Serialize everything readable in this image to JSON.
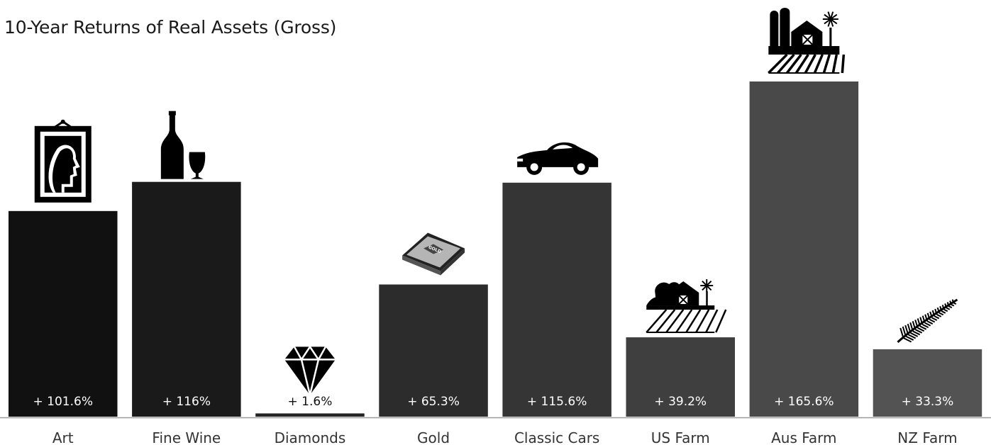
{
  "chart_data": {
    "type": "bar",
    "title": "10-Year Returns of Real Assets (Gross)",
    "xlabel": "",
    "ylabel": "",
    "ylim": [
      0,
      180
    ],
    "grid": false,
    "legend": "none",
    "categories": [
      "Art",
      "Fine Wine",
      "Diamonds",
      "Gold",
      "Classic Cars",
      "US Farm",
      "Aus Farm",
      "NZ Farm"
    ],
    "values": [
      101.6,
      116,
      1.6,
      65.3,
      115.6,
      39.2,
      165.6,
      33.3
    ],
    "data_labels": [
      "+ 101.6%",
      "+ 116%",
      "+ 1.6%",
      "+ 65.3%",
      "+ 115.6%",
      "+ 39.2%",
      "+ 165.6%",
      "+ 33.3%"
    ],
    "bar_colors": [
      "#111111",
      "#1a1a1a",
      "#232323",
      "#2c2c2c",
      "#353535",
      "#3f3f3f",
      "#494949",
      "#535353"
    ],
    "icons": [
      "portrait-frame-icon",
      "wine-bottle-glass-icon",
      "diamond-icon",
      "gold-bar-icon",
      "sports-car-icon",
      "farm-barn-icon",
      "farm-barn-silo-icon",
      "silver-fern-icon"
    ],
    "gold_bar_text": "GOLD"
  }
}
